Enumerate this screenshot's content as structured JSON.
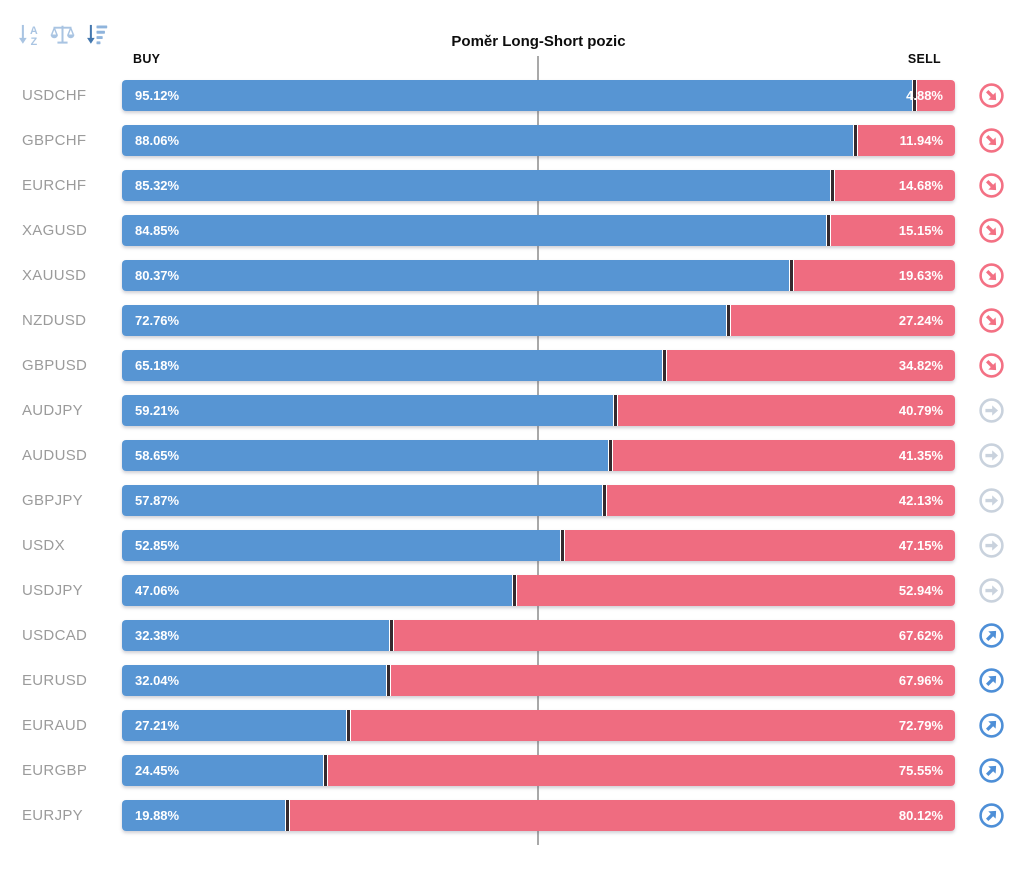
{
  "title": "Poměr Long-Short pozic",
  "header": {
    "buy_label": "BUY",
    "sell_label": "SELL"
  },
  "toolbar": {
    "icons": [
      {
        "name": "sort-alphabetical-icon",
        "state": "inactive"
      },
      {
        "name": "balance-scale-icon",
        "state": "inactive"
      },
      {
        "name": "sort-amount-desc-icon",
        "state": "active"
      }
    ]
  },
  "colors": {
    "buy": "#5795d3",
    "sell": "#ef6c80",
    "divider": "#352a2e",
    "center_line": "#a9a9a9",
    "label": "#9b9b9b",
    "trend_down": "#f37184",
    "trend_flat": "#c9d2dd",
    "trend_up": "#4e8fd7",
    "icon_muted": "#a9c4e2",
    "icon_active": "#4377ae",
    "icon_bars": "#8fb4dc"
  },
  "rows": [
    {
      "pair": "USDCHF",
      "buy": 95.12,
      "sell": 4.88,
      "buy_label": "95.12%",
      "sell_label": "4.88%",
      "trend": "down"
    },
    {
      "pair": "GBPCHF",
      "buy": 88.06,
      "sell": 11.94,
      "buy_label": "88.06%",
      "sell_label": "11.94%",
      "trend": "down"
    },
    {
      "pair": "EURCHF",
      "buy": 85.32,
      "sell": 14.68,
      "buy_label": "85.32%",
      "sell_label": "14.68%",
      "trend": "down"
    },
    {
      "pair": "XAGUSD",
      "buy": 84.85,
      "sell": 15.15,
      "buy_label": "84.85%",
      "sell_label": "15.15%",
      "trend": "down"
    },
    {
      "pair": "XAUUSD",
      "buy": 80.37,
      "sell": 19.63,
      "buy_label": "80.37%",
      "sell_label": "19.63%",
      "trend": "down"
    },
    {
      "pair": "NZDUSD",
      "buy": 72.76,
      "sell": 27.24,
      "buy_label": "72.76%",
      "sell_label": "27.24%",
      "trend": "down"
    },
    {
      "pair": "GBPUSD",
      "buy": 65.18,
      "sell": 34.82,
      "buy_label": "65.18%",
      "sell_label": "34.82%",
      "trend": "down"
    },
    {
      "pair": "AUDJPY",
      "buy": 59.21,
      "sell": 40.79,
      "buy_label": "59.21%",
      "sell_label": "40.79%",
      "trend": "flat"
    },
    {
      "pair": "AUDUSD",
      "buy": 58.65,
      "sell": 41.35,
      "buy_label": "58.65%",
      "sell_label": "41.35%",
      "trend": "flat"
    },
    {
      "pair": "GBPJPY",
      "buy": 57.87,
      "sell": 42.13,
      "buy_label": "57.87%",
      "sell_label": "42.13%",
      "trend": "flat"
    },
    {
      "pair": "USDX",
      "buy": 52.85,
      "sell": 47.15,
      "buy_label": "52.85%",
      "sell_label": "47.15%",
      "trend": "flat"
    },
    {
      "pair": "USDJPY",
      "buy": 47.06,
      "sell": 52.94,
      "buy_label": "47.06%",
      "sell_label": "52.94%",
      "trend": "flat"
    },
    {
      "pair": "USDCAD",
      "buy": 32.38,
      "sell": 67.62,
      "buy_label": "32.38%",
      "sell_label": "67.62%",
      "trend": "up"
    },
    {
      "pair": "EURUSD",
      "buy": 32.04,
      "sell": 67.96,
      "buy_label": "32.04%",
      "sell_label": "67.96%",
      "trend": "up"
    },
    {
      "pair": "EURAUD",
      "buy": 27.21,
      "sell": 72.79,
      "buy_label": "27.21%",
      "sell_label": "72.79%",
      "trend": "up"
    },
    {
      "pair": "EURGBP",
      "buy": 24.45,
      "sell": 75.55,
      "buy_label": "24.45%",
      "sell_label": "75.55%",
      "trend": "up"
    },
    {
      "pair": "EURJPY",
      "buy": 19.88,
      "sell": 80.12,
      "buy_label": "19.88%",
      "sell_label": "80.12%",
      "trend": "up"
    }
  ],
  "chart_data": {
    "type": "bar",
    "orientation": "horizontal",
    "stacked": true,
    "title": "Poměr Long-Short pozic",
    "categories": [
      "USDCHF",
      "GBPCHF",
      "EURCHF",
      "XAGUSD",
      "XAUUSD",
      "NZDUSD",
      "GBPUSD",
      "AUDJPY",
      "AUDUSD",
      "GBPJPY",
      "USDX",
      "USDJPY",
      "USDCAD",
      "EURUSD",
      "EURAUD",
      "EURGBP",
      "EURJPY"
    ],
    "series": [
      {
        "name": "BUY",
        "color": "#5795d3",
        "values": [
          95.12,
          88.06,
          85.32,
          84.85,
          80.37,
          72.76,
          65.18,
          59.21,
          58.65,
          57.87,
          52.85,
          47.06,
          32.38,
          32.04,
          27.21,
          24.45,
          19.88
        ]
      },
      {
        "name": "SELL",
        "color": "#ef6c80",
        "values": [
          4.88,
          11.94,
          14.68,
          15.15,
          19.63,
          27.24,
          34.82,
          40.79,
          41.35,
          42.13,
          47.15,
          52.94,
          67.62,
          67.96,
          72.79,
          75.55,
          80.12
        ]
      }
    ],
    "value_format": "percent",
    "xlim": [
      0,
      100
    ],
    "center_line_at": 50,
    "grid": "single center vertical gridline",
    "legend_position": "top: BUY left-aligned, SELL right-aligned",
    "sort_order": "BUY descending",
    "trend_indicator_per_row": [
      "down",
      "down",
      "down",
      "down",
      "down",
      "down",
      "down",
      "flat",
      "flat",
      "flat",
      "flat",
      "flat",
      "up",
      "up",
      "up",
      "up",
      "up"
    ]
  }
}
